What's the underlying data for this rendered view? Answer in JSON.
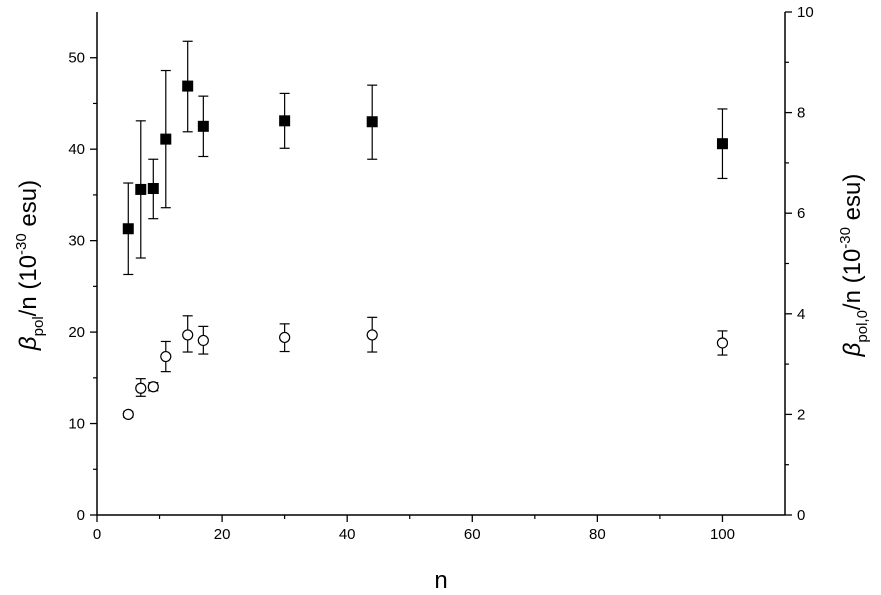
{
  "chart_data": {
    "type": "scatter",
    "title": "",
    "x_axis": {
      "label": "n",
      "range": [
        0,
        110
      ],
      "ticks": [
        0,
        20,
        40,
        60,
        80,
        100
      ],
      "tick_labels": [
        "0",
        "20",
        "40",
        "60",
        "80",
        "100"
      ]
    },
    "y_axis_left": {
      "label_parts": {
        "symbol": "β",
        "sub": "pol",
        "mid": "/n (10",
        "sup": "-30",
        "end": " esu)"
      },
      "range": [
        0,
        55
      ],
      "ticks": [
        0,
        10,
        20,
        30,
        40,
        50
      ],
      "tick_labels": [
        "0",
        "10",
        "20",
        "30",
        "40",
        "50"
      ]
    },
    "y_axis_right": {
      "label_parts": {
        "symbol": "β",
        "sub": "pol,0",
        "mid": "/n (10",
        "sup": "-30",
        "end": " esu)"
      },
      "range": [
        0,
        10
      ],
      "ticks": [
        0,
        2,
        4,
        6,
        8,
        10
      ],
      "tick_labels": [
        "0",
        "2",
        "4",
        "6",
        "8",
        "10"
      ]
    },
    "grid": false,
    "legend": "none",
    "series": [
      {
        "marker": "filled-square",
        "axis": "left",
        "color": "#000000",
        "points": [
          {
            "x": 5,
            "y": 31.3,
            "err_low": 26.3,
            "err_high": 36.3
          },
          {
            "x": 7,
            "y": 35.6,
            "err_low": 28.1,
            "err_high": 43.1
          },
          {
            "x": 9,
            "y": 35.7,
            "err_low": 32.4,
            "err_high": 38.9
          },
          {
            "x": 11,
            "y": 41.1,
            "err_low": 33.6,
            "err_high": 48.6
          },
          {
            "x": 14.5,
            "y": 46.9,
            "err_low": 41.9,
            "err_high": 51.8
          },
          {
            "x": 17,
            "y": 42.5,
            "err_low": 39.2,
            "err_high": 45.8
          },
          {
            "x": 30,
            "y": 43.1,
            "err_low": 40.1,
            "err_high": 46.1
          },
          {
            "x": 44,
            "y": 43.0,
            "err_low": 38.9,
            "err_high": 47.0
          },
          {
            "x": 100,
            "y": 40.6,
            "err_low": 36.8,
            "err_high": 44.4
          }
        ]
      },
      {
        "marker": "open-circle",
        "axis": "right",
        "color": "#000000",
        "points": [
          {
            "x": 5,
            "y": 2.0,
            "err_low": 1.94,
            "err_high": 2.06
          },
          {
            "x": 7,
            "y": 2.52,
            "err_low": 2.36,
            "err_high": 2.71
          },
          {
            "x": 9,
            "y": 2.55,
            "err_low": 2.47,
            "err_high": 2.63
          },
          {
            "x": 11,
            "y": 3.15,
            "err_low": 2.85,
            "err_high": 3.45
          },
          {
            "x": 14.5,
            "y": 3.58,
            "err_low": 3.24,
            "err_high": 3.96
          },
          {
            "x": 17,
            "y": 3.47,
            "err_low": 3.2,
            "err_high": 3.75
          },
          {
            "x": 30,
            "y": 3.53,
            "err_low": 3.25,
            "err_high": 3.8
          },
          {
            "x": 44,
            "y": 3.58,
            "err_low": 3.24,
            "err_high": 3.93
          },
          {
            "x": 100,
            "y": 3.42,
            "err_low": 3.18,
            "err_high": 3.66
          }
        ]
      }
    ]
  }
}
